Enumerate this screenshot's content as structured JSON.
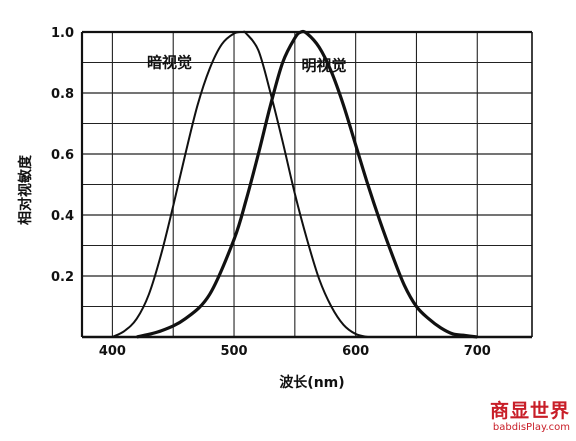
{
  "chart_data": {
    "type": "line",
    "xlabel": "波长(nm)",
    "ylabel": "相对视敏度",
    "xlim": [
      375,
      745
    ],
    "ylim": [
      0,
      1.0
    ],
    "x_ticks": [
      400,
      500,
      600,
      700
    ],
    "y_ticks": [
      0.2,
      0.4,
      0.6,
      0.8,
      1.0
    ],
    "x_tick_labels": [
      "400",
      "500",
      "600",
      "700"
    ],
    "y_tick_labels": [
      "0.2",
      "0.4",
      "0.6",
      "0.8",
      "1.0"
    ],
    "grid": true,
    "legend": "none",
    "series": [
      {
        "name": "暗视觉",
        "label_at": [
          447,
          0.9
        ],
        "x": [
          400,
          410,
          420,
          430,
          440,
          450,
          460,
          470,
          480,
          490,
          500,
          507,
          510,
          520,
          530,
          540,
          550,
          560,
          570,
          580,
          590,
          600,
          610
        ],
        "y": [
          0.0,
          0.02,
          0.06,
          0.14,
          0.27,
          0.43,
          0.6,
          0.76,
          0.88,
          0.96,
          0.995,
          1.0,
          0.995,
          0.94,
          0.8,
          0.64,
          0.47,
          0.32,
          0.19,
          0.1,
          0.04,
          0.01,
          0.0
        ]
      },
      {
        "name": "明视觉",
        "label_at": [
          574,
          0.89
        ],
        "x": [
          420,
          440,
          460,
          480,
          500,
          510,
          520,
          530,
          540,
          550,
          555,
          560,
          570,
          580,
          590,
          600,
          610,
          620,
          630,
          640,
          650,
          660,
          670,
          680,
          690,
          700
        ],
        "y": [
          0.0,
          0.02,
          0.06,
          0.14,
          0.32,
          0.45,
          0.6,
          0.76,
          0.9,
          0.98,
          1.0,
          0.995,
          0.95,
          0.87,
          0.76,
          0.63,
          0.5,
          0.38,
          0.27,
          0.17,
          0.1,
          0.06,
          0.03,
          0.01,
          0.005,
          0.0
        ]
      }
    ]
  },
  "watermark": {
    "text_cn": "商显世界",
    "text_en": "babdisPlay.com"
  }
}
